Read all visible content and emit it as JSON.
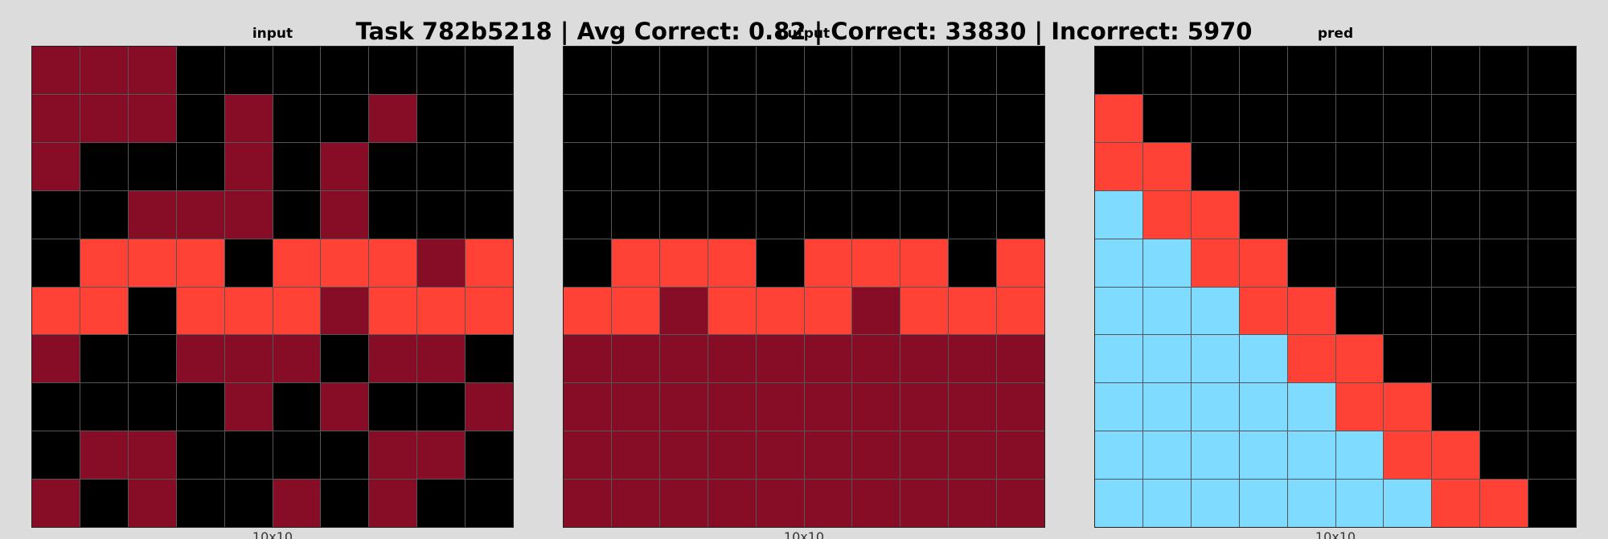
{
  "title": "Task 782b5218 | Avg Correct: 0.82 | Correct: 33830 | Incorrect: 5970",
  "palette": {
    "0": "#000000",
    "2": "#ff4136",
    "8": "#7fdbff",
    "9": "#870c25"
  },
  "panels": [
    {
      "title": "input",
      "caption": "10x10",
      "grid": [
        [
          9,
          9,
          9,
          0,
          0,
          0,
          0,
          0,
          0,
          0
        ],
        [
          9,
          9,
          9,
          0,
          9,
          0,
          0,
          9,
          0,
          0
        ],
        [
          9,
          0,
          0,
          0,
          9,
          0,
          9,
          0,
          0,
          0
        ],
        [
          0,
          0,
          9,
          9,
          9,
          0,
          9,
          0,
          0,
          0
        ],
        [
          0,
          2,
          2,
          2,
          0,
          2,
          2,
          2,
          9,
          2
        ],
        [
          2,
          2,
          0,
          2,
          2,
          2,
          9,
          2,
          2,
          2
        ],
        [
          9,
          0,
          0,
          9,
          9,
          9,
          0,
          9,
          9,
          0
        ],
        [
          0,
          0,
          0,
          0,
          9,
          0,
          9,
          0,
          0,
          9
        ],
        [
          0,
          9,
          9,
          0,
          0,
          0,
          0,
          9,
          9,
          0
        ],
        [
          9,
          0,
          9,
          0,
          0,
          9,
          0,
          9,
          0,
          0
        ]
      ]
    },
    {
      "title": "output",
      "caption": "10x10",
      "grid": [
        [
          0,
          0,
          0,
          0,
          0,
          0,
          0,
          0,
          0,
          0
        ],
        [
          0,
          0,
          0,
          0,
          0,
          0,
          0,
          0,
          0,
          0
        ],
        [
          0,
          0,
          0,
          0,
          0,
          0,
          0,
          0,
          0,
          0
        ],
        [
          0,
          0,
          0,
          0,
          0,
          0,
          0,
          0,
          0,
          0
        ],
        [
          0,
          2,
          2,
          2,
          0,
          2,
          2,
          2,
          0,
          2
        ],
        [
          2,
          2,
          9,
          2,
          2,
          2,
          9,
          2,
          2,
          2
        ],
        [
          9,
          9,
          9,
          9,
          9,
          9,
          9,
          9,
          9,
          9
        ],
        [
          9,
          9,
          9,
          9,
          9,
          9,
          9,
          9,
          9,
          9
        ],
        [
          9,
          9,
          9,
          9,
          9,
          9,
          9,
          9,
          9,
          9
        ],
        [
          9,
          9,
          9,
          9,
          9,
          9,
          9,
          9,
          9,
          9
        ]
      ]
    },
    {
      "title": "pred",
      "caption": "10x10",
      "grid": [
        [
          0,
          0,
          0,
          0,
          0,
          0,
          0,
          0,
          0,
          0
        ],
        [
          2,
          0,
          0,
          0,
          0,
          0,
          0,
          0,
          0,
          0
        ],
        [
          2,
          2,
          0,
          0,
          0,
          0,
          0,
          0,
          0,
          0
        ],
        [
          8,
          2,
          2,
          0,
          0,
          0,
          0,
          0,
          0,
          0
        ],
        [
          8,
          8,
          2,
          2,
          0,
          0,
          0,
          0,
          0,
          0
        ],
        [
          8,
          8,
          8,
          2,
          2,
          0,
          0,
          0,
          0,
          0
        ],
        [
          8,
          8,
          8,
          8,
          2,
          2,
          0,
          0,
          0,
          0
        ],
        [
          8,
          8,
          8,
          8,
          8,
          2,
          2,
          0,
          0,
          0
        ],
        [
          8,
          8,
          8,
          8,
          8,
          8,
          2,
          2,
          0,
          0
        ],
        [
          8,
          8,
          8,
          8,
          8,
          8,
          8,
          2,
          2,
          0
        ]
      ]
    }
  ]
}
